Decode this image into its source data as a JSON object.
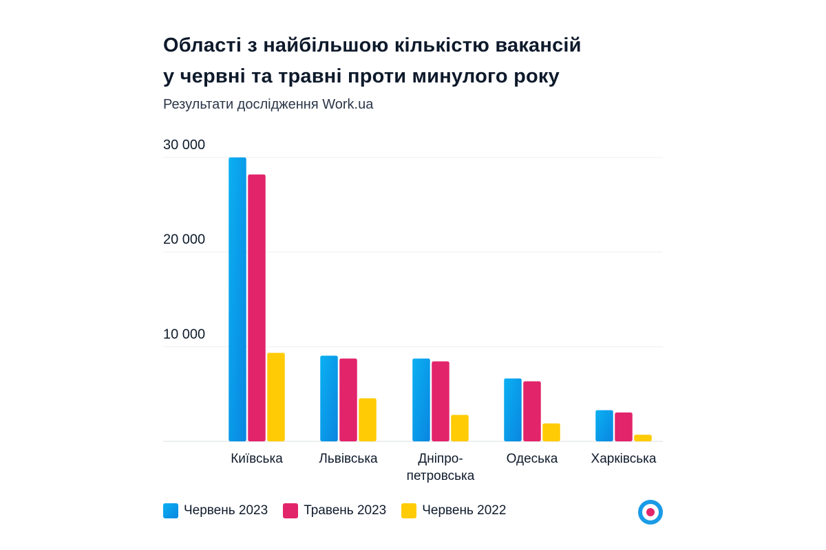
{
  "chart_data": {
    "type": "bar",
    "title": "Області з найбільшою кількістю вакансій у червні та травні проти минулого року",
    "title_lines": [
      "Області з найбільшою кількістю вакансій",
      "у червні та травні проти минулого року"
    ],
    "subtitle": "Результати дослідження Work.ua",
    "categories": [
      "Київська",
      "Львівська",
      "Дніпро-петровська",
      "Одеська",
      "Харківська"
    ],
    "category_lines": [
      [
        "Київська"
      ],
      [
        "Львівська"
      ],
      [
        "Дніпро-",
        "петровська"
      ],
      [
        "Одеська"
      ],
      [
        "Харківська"
      ]
    ],
    "series": [
      {
        "name": "Червень 2023",
        "color": "#0a9be8",
        "values": [
          30000,
          9050,
          8750,
          6650,
          3300
        ]
      },
      {
        "name": "Травень 2023",
        "color": "#e2246a",
        "values": [
          28200,
          8750,
          8450,
          6350,
          3050
        ]
      },
      {
        "name": "Червень 2022",
        "color": "#ffcb05",
        "values": [
          9350,
          4550,
          2800,
          1900,
          700
        ]
      }
    ],
    "yticks": [
      10000,
      20000,
      30000
    ],
    "ytick_labels": [
      "10 000",
      "20 000",
      "30 000"
    ],
    "ylim": [
      0,
      30000
    ],
    "xlabel": "",
    "ylabel": "",
    "grid": true,
    "legend_position": "bottom-left"
  },
  "logo": {
    "name": "work-ua-logo",
    "colors": [
      "#1a9be6",
      "#e2246a"
    ]
  }
}
